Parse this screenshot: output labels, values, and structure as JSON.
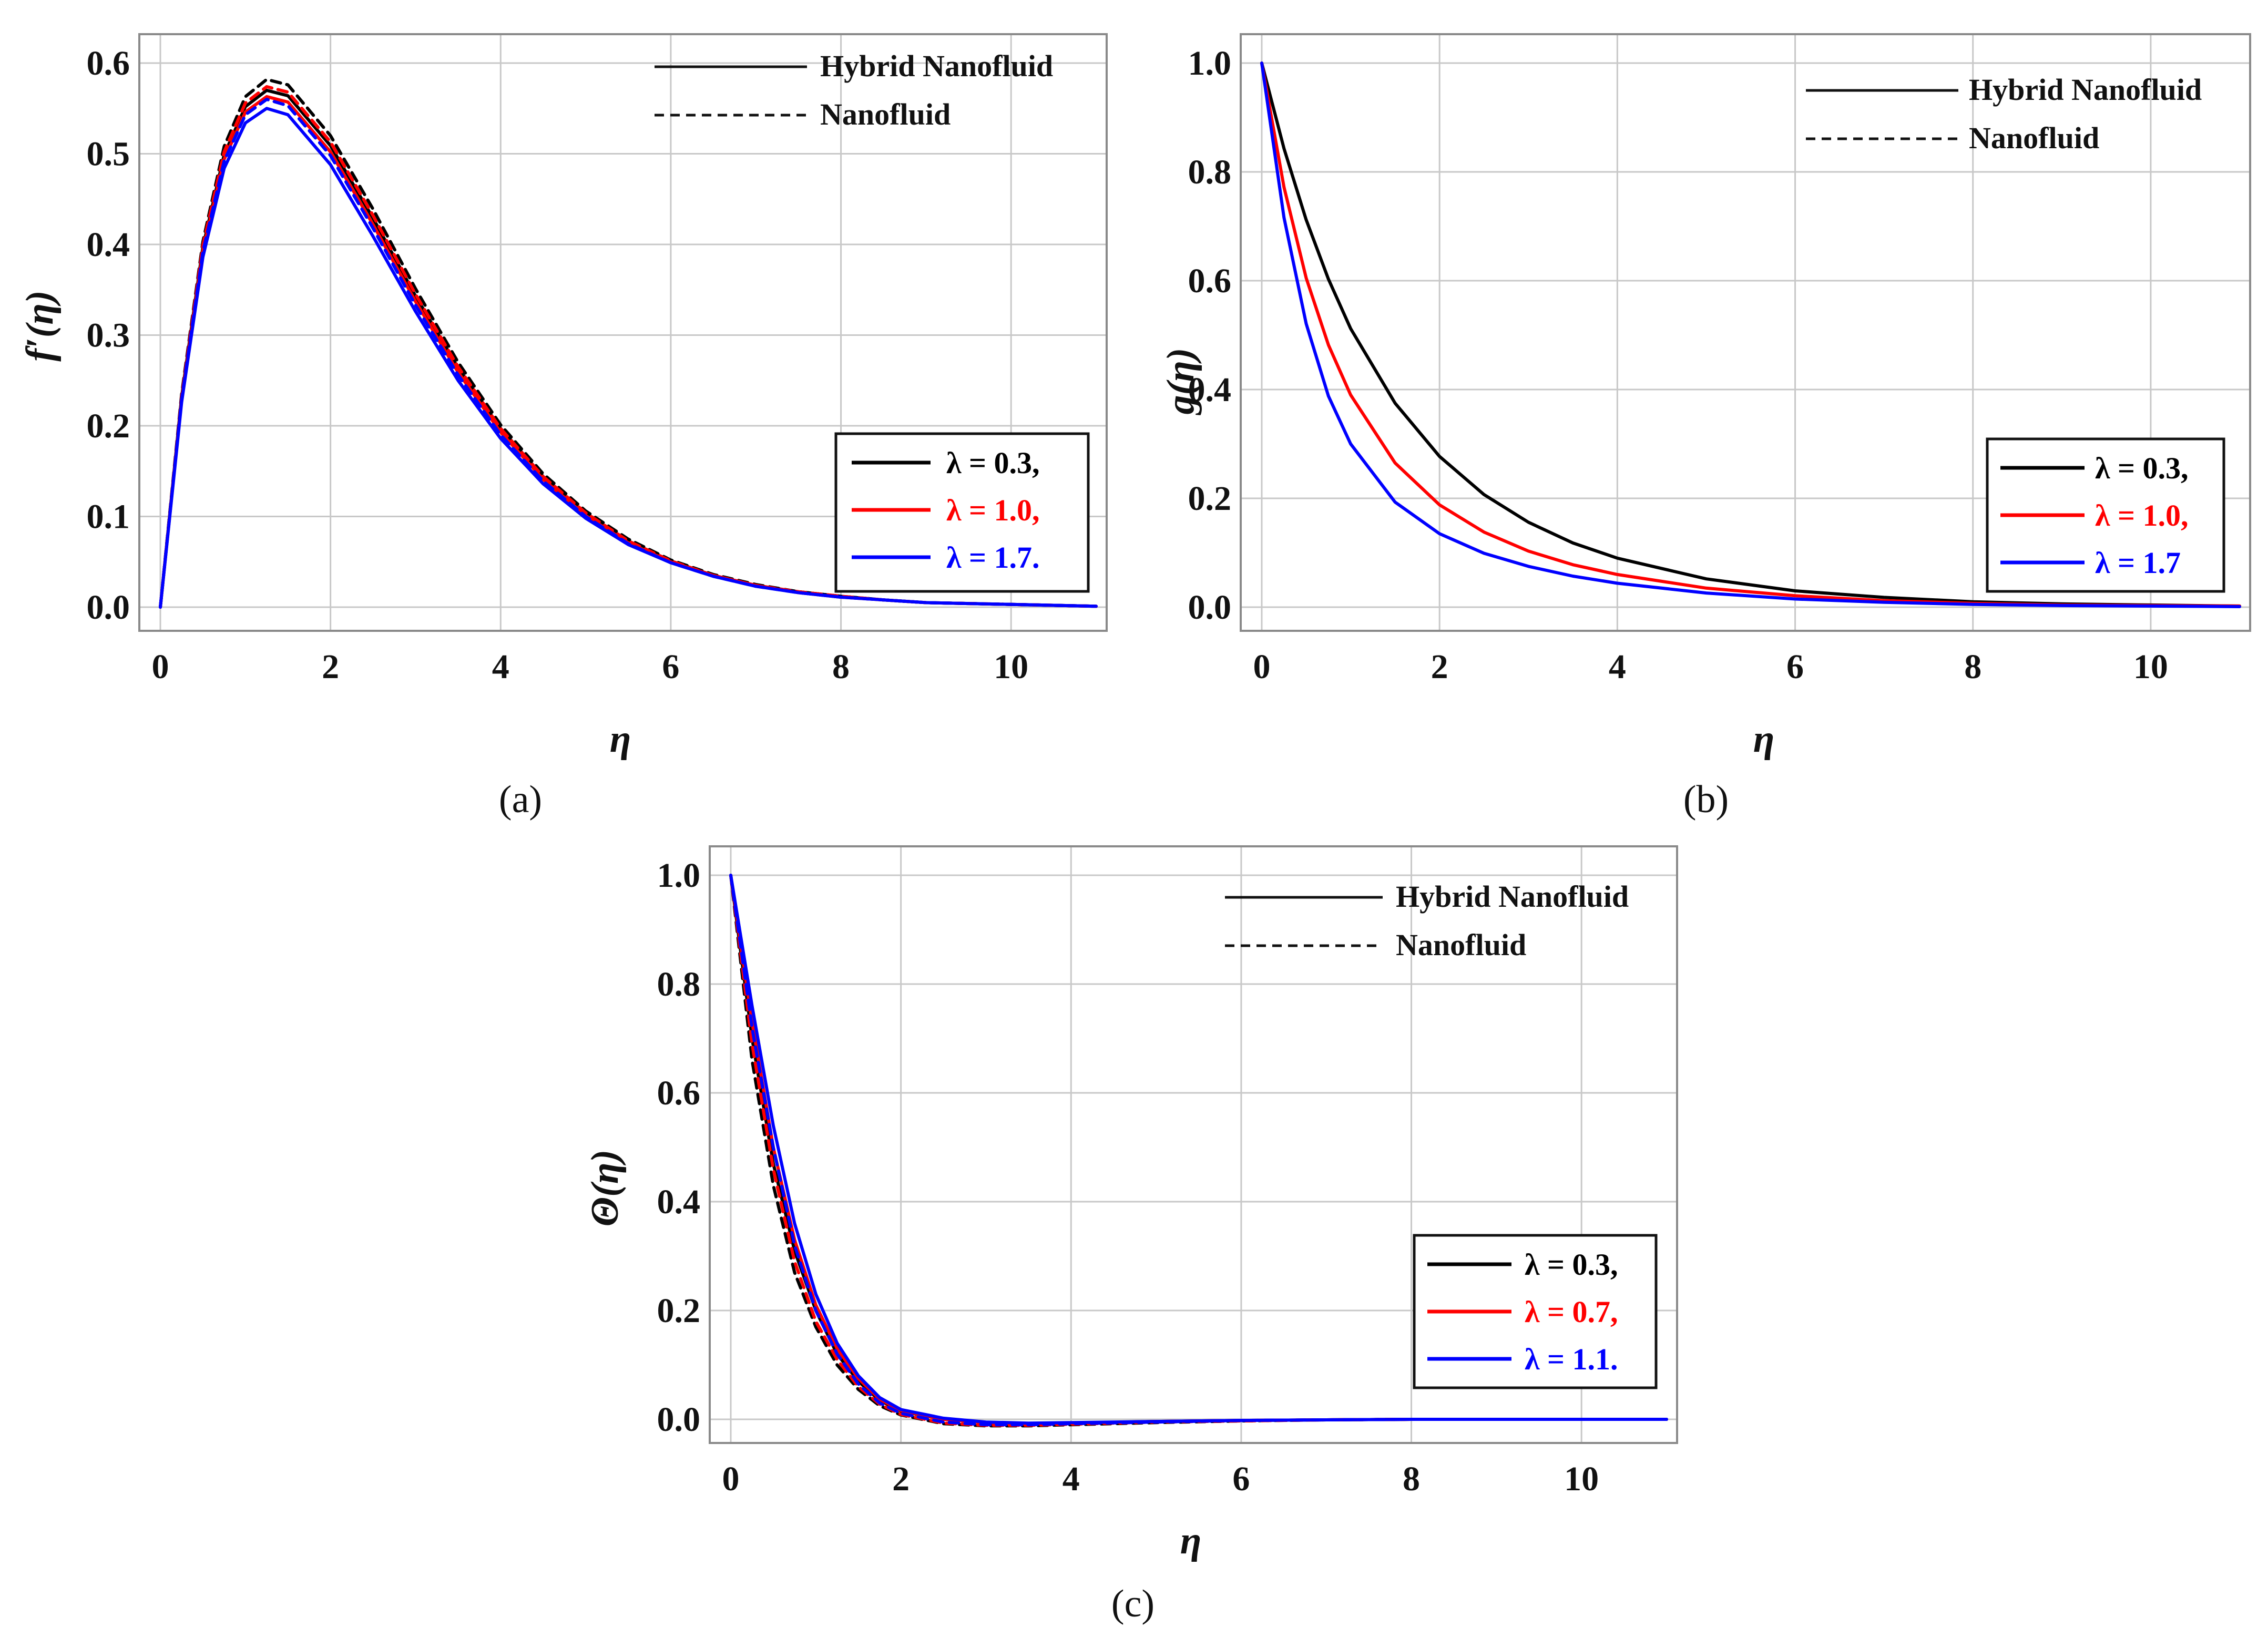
{
  "chart_data": [
    {
      "type": "line",
      "panel_label": "(a)",
      "xlabel": "η",
      "ylabel": "f′(η)",
      "xlim": [
        0,
        11
      ],
      "ylim": [
        0,
        0.6
      ],
      "xticks": [
        "0",
        "2",
        "4",
        "6",
        "8",
        "10"
      ],
      "yticks": [
        "0.0",
        "0.1",
        "0.2",
        "0.3",
        "0.4",
        "0.5",
        "0.6"
      ],
      "style_legend": [
        {
          "label": "Hybrid Nanofluid",
          "dash": "solid"
        },
        {
          "label": "Nanofluid",
          "dash": "dashed"
        }
      ],
      "color_legend": [
        {
          "label": "λ = 0.3,",
          "color": "#000000"
        },
        {
          "label": "λ = 1.0,",
          "color": "#ff0000"
        },
        {
          "label": "λ = 1.7.",
          "color": "#0000ff"
        }
      ],
      "x": [
        0,
        0.25,
        0.5,
        0.75,
        1,
        1.25,
        1.5,
        2,
        2.5,
        3,
        3.5,
        4,
        4.5,
        5,
        5.5,
        6,
        6.5,
        7,
        7.5,
        8,
        8.5,
        9,
        9.5,
        10,
        10.5,
        11
      ],
      "series": [
        {
          "name": "Hybrid Nanofluid, λ = 0.3",
          "color": "#000000",
          "dash": "solid",
          "values": [
            0,
            0.232,
            0.397,
            0.499,
            0.552,
            0.57,
            0.564,
            0.509,
            0.429,
            0.343,
            0.264,
            0.197,
            0.144,
            0.103,
            0.073,
            0.051,
            0.035,
            0.024,
            0.017,
            0.012,
            0.008,
            0.005,
            0.004,
            0.003,
            0.002,
            0.001
          ]
        },
        {
          "name": "Nanofluid, λ = 0.3",
          "color": "#000000",
          "dash": "dashed",
          "values": [
            0,
            0.235,
            0.403,
            0.508,
            0.563,
            0.582,
            0.576,
            0.52,
            0.439,
            0.351,
            0.27,
            0.201,
            0.147,
            0.106,
            0.075,
            0.052,
            0.036,
            0.025,
            0.017,
            0.012,
            0.008,
            0.005,
            0.004,
            0.003,
            0.002,
            0.001
          ]
        },
        {
          "name": "Hybrid Nanofluid, λ = 1.0",
          "color": "#ff0000",
          "dash": "solid",
          "values": [
            0,
            0.229,
            0.393,
            0.494,
            0.546,
            0.563,
            0.557,
            0.502,
            0.422,
            0.337,
            0.259,
            0.193,
            0.141,
            0.101,
            0.071,
            0.05,
            0.035,
            0.024,
            0.016,
            0.011,
            0.008,
            0.005,
            0.004,
            0.003,
            0.002,
            0.001
          ]
        },
        {
          "name": "Nanofluid, λ = 1.0",
          "color": "#ff0000",
          "dash": "dashed",
          "values": [
            0,
            0.232,
            0.399,
            0.502,
            0.556,
            0.574,
            0.568,
            0.513,
            0.432,
            0.345,
            0.265,
            0.197,
            0.144,
            0.104,
            0.073,
            0.051,
            0.035,
            0.024,
            0.017,
            0.012,
            0.008,
            0.005,
            0.004,
            0.003,
            0.002,
            0.001
          ]
        },
        {
          "name": "Hybrid Nanofluid, λ = 1.7",
          "color": "#0000ff",
          "dash": "solid",
          "values": [
            0,
            0.226,
            0.386,
            0.484,
            0.534,
            0.55,
            0.543,
            0.488,
            0.409,
            0.326,
            0.25,
            0.186,
            0.136,
            0.098,
            0.069,
            0.049,
            0.034,
            0.023,
            0.016,
            0.011,
            0.008,
            0.005,
            0.004,
            0.003,
            0.002,
            0.001
          ]
        },
        {
          "name": "Nanofluid, λ = 1.7",
          "color": "#0000ff",
          "dash": "dashed",
          "values": [
            0,
            0.229,
            0.392,
            0.492,
            0.543,
            0.56,
            0.553,
            0.498,
            0.418,
            0.333,
            0.256,
            0.19,
            0.139,
            0.1,
            0.07,
            0.049,
            0.034,
            0.023,
            0.016,
            0.011,
            0.008,
            0.005,
            0.004,
            0.003,
            0.002,
            0.001
          ]
        }
      ]
    },
    {
      "type": "line",
      "panel_label": "(b)",
      "xlabel": "η",
      "ylabel": "g(η)",
      "xlim": [
        0,
        11
      ],
      "ylim": [
        0,
        1.0
      ],
      "xticks": [
        "0",
        "2",
        "4",
        "6",
        "8",
        "10"
      ],
      "yticks": [
        "0.0",
        "0.2",
        "0.4",
        "0.6",
        "0.8",
        "1.0"
      ],
      "style_legend": [
        {
          "label": "Hybrid Nanofluid",
          "dash": "solid"
        },
        {
          "label": "Nanofluid",
          "dash": "dashed"
        }
      ],
      "color_legend": [
        {
          "label": "λ = 0.3,",
          "color": "#000000"
        },
        {
          "label": "λ = 1.0,",
          "color": "#ff0000"
        },
        {
          "label": "λ = 1.7",
          "color": "#0000ff"
        }
      ],
      "x": [
        0,
        0.25,
        0.5,
        0.75,
        1,
        1.5,
        2,
        2.5,
        3,
        3.5,
        4,
        5,
        6,
        7,
        8,
        9,
        10,
        11
      ],
      "series": [
        {
          "name": "λ = 0.3",
          "color": "#000000",
          "dash": "solid",
          "values": [
            1.0,
            0.843,
            0.712,
            0.603,
            0.512,
            0.375,
            0.277,
            0.207,
            0.156,
            0.118,
            0.09,
            0.052,
            0.03,
            0.018,
            0.01,
            0.006,
            0.004,
            0.002
          ]
        },
        {
          "name": "λ = 1.0",
          "color": "#ff0000",
          "dash": "solid",
          "values": [
            1.0,
            0.772,
            0.605,
            0.482,
            0.39,
            0.265,
            0.188,
            0.138,
            0.103,
            0.078,
            0.06,
            0.035,
            0.021,
            0.012,
            0.007,
            0.004,
            0.003,
            0.002
          ]
        },
        {
          "name": "λ = 1.7",
          "color": "#0000ff",
          "dash": "solid",
          "values": [
            1.0,
            0.716,
            0.521,
            0.388,
            0.3,
            0.193,
            0.135,
            0.099,
            0.075,
            0.057,
            0.044,
            0.026,
            0.015,
            0.009,
            0.005,
            0.003,
            0.002,
            0.001
          ]
        }
      ]
    },
    {
      "type": "line",
      "panel_label": "(c)",
      "xlabel": "η",
      "ylabel": "Θ(η)",
      "xlim": [
        0,
        11
      ],
      "ylim": [
        0,
        1.0
      ],
      "xticks": [
        "0",
        "2",
        "4",
        "6",
        "8",
        "10"
      ],
      "yticks": [
        "0.0",
        "0.2",
        "0.4",
        "0.6",
        "0.8",
        "1.0"
      ],
      "style_legend": [
        {
          "label": "Hybrid Nanofluid",
          "dash": "solid"
        },
        {
          "label": "Nanofluid",
          "dash": "dashed"
        }
      ],
      "color_legend": [
        {
          "label": "λ = 0.3,",
          "color": "#000000"
        },
        {
          "label": "λ = 0.7,",
          "color": "#ff0000"
        },
        {
          "label": "λ = 1.1.",
          "color": "#0000ff"
        }
      ],
      "x": [
        0,
        0.25,
        0.5,
        0.75,
        1,
        1.25,
        1.5,
        1.75,
        2,
        2.5,
        3,
        3.5,
        4,
        5,
        6,
        7,
        8,
        9,
        10,
        11
      ],
      "series": [
        {
          "name": "Hybrid Nanofluid, λ = 0.3",
          "color": "#000000",
          "dash": "solid",
          "values": [
            1.0,
            0.7,
            0.47,
            0.31,
            0.2,
            0.12,
            0.07,
            0.035,
            0.015,
            0.0,
            -0.006,
            -0.008,
            -0.007,
            -0.004,
            -0.002,
            -0.001,
            0.0,
            0.0,
            0.0,
            0.0
          ]
        },
        {
          "name": "Nanofluid, λ = 0.3",
          "color": "#000000",
          "dash": "dashed",
          "values": [
            1.0,
            0.66,
            0.43,
            0.27,
            0.17,
            0.1,
            0.055,
            0.025,
            0.008,
            -0.008,
            -0.012,
            -0.012,
            -0.01,
            -0.006,
            -0.003,
            -0.001,
            0.0,
            0.0,
            0.0,
            0.0
          ]
        },
        {
          "name": "Hybrid Nanofluid, λ = 0.7",
          "color": "#ff0000",
          "dash": "solid",
          "values": [
            1.0,
            0.73,
            0.5,
            0.33,
            0.21,
            0.13,
            0.075,
            0.037,
            0.016,
            0.0,
            -0.006,
            -0.008,
            -0.007,
            -0.004,
            -0.002,
            -0.001,
            0.0,
            0.0,
            0.0,
            0.0
          ]
        },
        {
          "name": "Nanofluid, λ = 0.7",
          "color": "#ff0000",
          "dash": "dashed",
          "values": [
            1.0,
            0.69,
            0.46,
            0.29,
            0.18,
            0.11,
            0.06,
            0.028,
            0.009,
            -0.007,
            -0.011,
            -0.011,
            -0.009,
            -0.005,
            -0.003,
            -0.001,
            0.0,
            0.0,
            0.0,
            0.0
          ]
        },
        {
          "name": "Hybrid Nanofluid, λ = 1.1",
          "color": "#0000ff",
          "dash": "solid",
          "values": [
            1.0,
            0.76,
            0.54,
            0.36,
            0.23,
            0.14,
            0.08,
            0.04,
            0.018,
            0.002,
            -0.005,
            -0.007,
            -0.006,
            -0.004,
            -0.002,
            -0.001,
            0.0,
            0.0,
            0.0,
            0.0
          ]
        },
        {
          "name": "Nanofluid, λ = 1.1",
          "color": "#0000ff",
          "dash": "dashed",
          "values": [
            1.0,
            0.72,
            0.5,
            0.32,
            0.2,
            0.12,
            0.065,
            0.03,
            0.011,
            -0.005,
            -0.01,
            -0.01,
            -0.008,
            -0.005,
            -0.002,
            -0.001,
            0.0,
            0.0,
            0.0,
            0.0
          ]
        }
      ]
    }
  ]
}
